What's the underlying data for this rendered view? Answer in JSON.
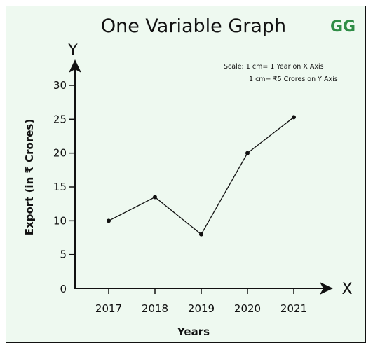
{
  "brand": {
    "logo_text": "GG",
    "logo_color": "#2f8d46"
  },
  "chart_data": {
    "type": "line",
    "title": "One Variable Graph",
    "x_axis_letter": "X",
    "y_axis_letter": "Y",
    "xlabel": "Years",
    "ylabel": "Export (in ₹ Crores)",
    "categories": [
      "2017",
      "2018",
      "2019",
      "2020",
      "2021"
    ],
    "series": [
      {
        "values": [
          10,
          13.5,
          8,
          20,
          25.3
        ]
      }
    ],
    "y_ticks": [
      0,
      5,
      10,
      15,
      20,
      25,
      30
    ],
    "ylim": [
      0,
      30
    ],
    "grid": false,
    "scale_note": [
      "Scale: 1 cm= 1 Year on X Axis",
      "1 cm= ₹5 Crores on Y Axis"
    ],
    "colors": {
      "background": "#eef9f0",
      "line": "#111111"
    }
  }
}
